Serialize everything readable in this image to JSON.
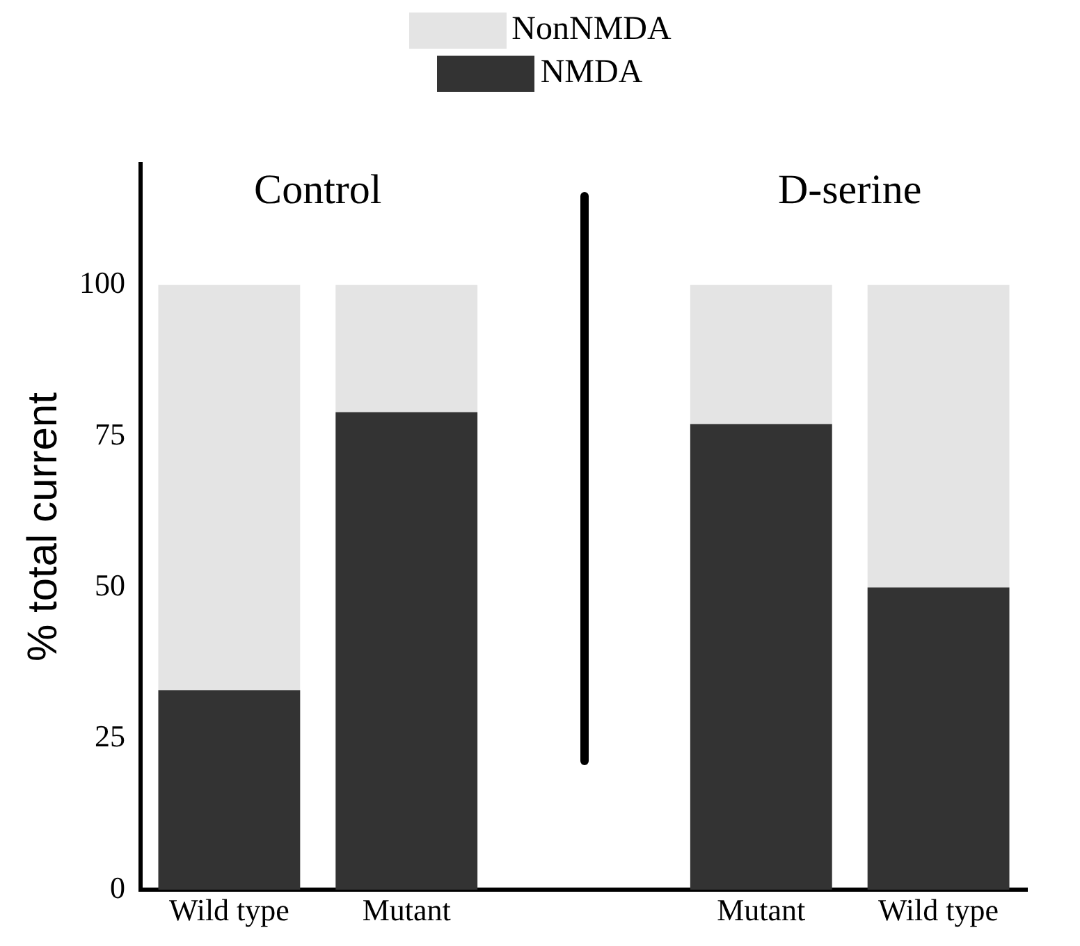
{
  "chart_data": {
    "type": "bar",
    "stacked": true,
    "ylabel": "% total current",
    "categories": [
      "Wild type",
      "Mutant",
      null,
      "Mutant",
      "Wild type"
    ],
    "series": [
      {
        "name": "NMDA",
        "color": "#333333",
        "values": [
          33,
          79,
          null,
          77,
          50
        ]
      },
      {
        "name": "NonNMDA",
        "color": "#e4e4e4",
        "values": [
          67,
          21,
          null,
          23,
          50
        ]
      }
    ],
    "ylim": [
      0,
      120
    ],
    "yticks": [
      0,
      25,
      50,
      75,
      100
    ],
    "grid": false,
    "legend": "top",
    "annotations": [
      "Control",
      "D-serine"
    ]
  }
}
